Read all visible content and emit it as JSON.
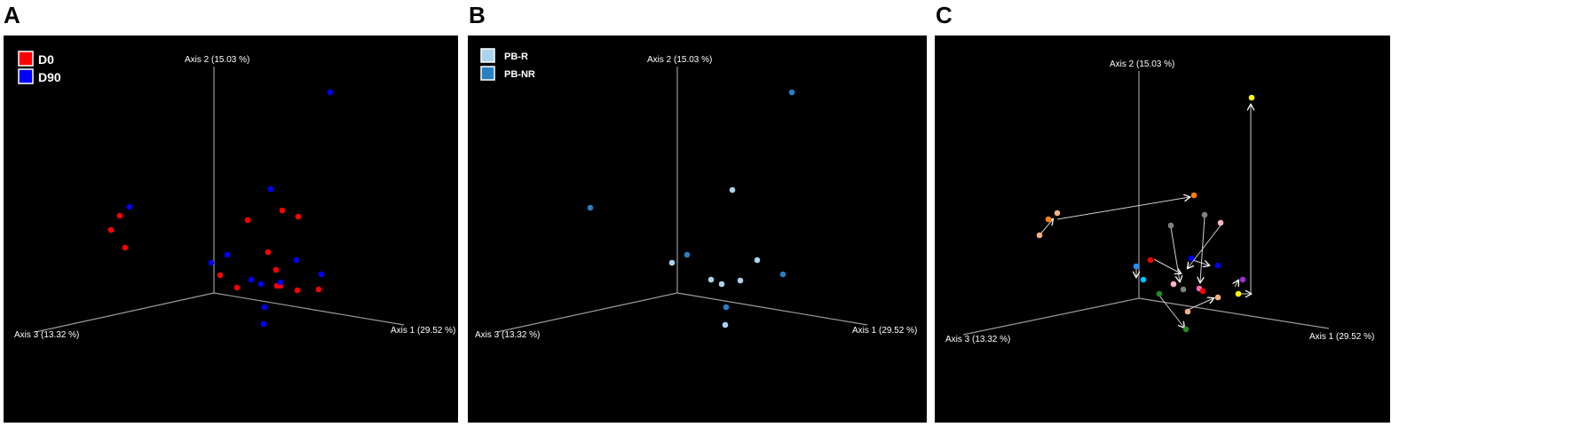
{
  "panels": [
    {
      "letter": "A"
    },
    {
      "letter": "B"
    },
    {
      "letter": "C"
    }
  ],
  "chart_data": [
    {
      "type": "scatter",
      "panel": "A",
      "axis_labels": {
        "axis1": "Axis 1 (29.52 %)",
        "axis2": "Axis 2 (15.03 %)",
        "axis3": "Axis 3 (13.32 %)"
      },
      "legend": [
        {
          "label": "D0",
          "color": "#ff0000"
        },
        {
          "label": "D90",
          "color": "#0000ff"
        }
      ],
      "series": [
        {
          "name": "D0",
          "color": "#ff0000",
          "points": [
            [
              135,
              243
            ],
            [
              141,
              279
            ],
            [
              125,
              259
            ],
            [
              279,
              248
            ],
            [
              318,
              237
            ],
            [
              336,
              244
            ],
            [
              302,
              284
            ],
            [
              311,
              304
            ],
            [
              248,
              310
            ],
            [
              267,
              324
            ],
            [
              312,
              322
            ],
            [
              316,
              322
            ],
            [
              335,
              327
            ],
            [
              359,
              326
            ]
          ]
        },
        {
          "name": "D90",
          "color": "#0000ff",
          "points": [
            [
              146,
              233
            ],
            [
              372,
              104
            ],
            [
              305,
              213
            ],
            [
              256,
              287
            ],
            [
              238,
              296
            ],
            [
              334,
              293
            ],
            [
              283,
              315
            ],
            [
              294,
              320
            ],
            [
              316,
              318
            ],
            [
              362,
              309
            ],
            [
              298,
              346
            ],
            [
              297,
              365
            ]
          ]
        }
      ]
    },
    {
      "type": "scatter",
      "panel": "B",
      "axis_labels": {
        "axis1": "Axis 1 (29.52 %)",
        "axis2": "Axis 2 (15.03 %)",
        "axis3": "Axis 3 (13.32 %)"
      },
      "legend": [
        {
          "label": "PB-R",
          "color": "#a9d3ee"
        },
        {
          "label": "PB-NR",
          "color": "#2a7fbf"
        }
      ],
      "series": [
        {
          "name": "PB-R",
          "color": "#a9d3ee",
          "points": [
            [
              825,
              214
            ],
            [
              757,
              296
            ],
            [
              853,
              293
            ],
            [
              801,
              315
            ],
            [
              813,
              320
            ],
            [
              834,
              316
            ],
            [
              817,
              366
            ]
          ]
        },
        {
          "name": "PB-NR",
          "color": "#2a7fbf",
          "points": [
            [
              892,
              104
            ],
            [
              665,
              234
            ],
            [
              774,
              287
            ],
            [
              882,
              309
            ],
            [
              818,
              346
            ]
          ]
        }
      ]
    },
    {
      "type": "scatter",
      "panel": "C",
      "axis_labels": {
        "axis1": "Axis 1 (29.52 %)",
        "axis2": "Axis 2 (15.03 %)",
        "axis3": "Axis 3 (13.32 %)"
      },
      "points": [
        [
          1191,
          240,
          "#f4b183"
        ],
        [
          1181,
          247,
          "#ff7f0e"
        ],
        [
          1171,
          265,
          "#f4b183"
        ],
        [
          1345,
          220,
          "#ff7f0e"
        ],
        [
          1410,
          110,
          "#ffff00"
        ],
        [
          1319,
          254,
          "#808080"
        ],
        [
          1357,
          242,
          "#808080"
        ],
        [
          1375,
          251,
          "#ffb6c1"
        ],
        [
          1280,
          300,
          "#1e90ff"
        ],
        [
          1288,
          315,
          "#00bfff"
        ],
        [
          1296,
          293,
          "#ff0000"
        ],
        [
          1342,
          291,
          "#0000ff"
        ],
        [
          1372,
          299,
          "#0000ff"
        ],
        [
          1400,
          315,
          "#9932cc"
        ],
        [
          1395,
          331,
          "#ffff00"
        ],
        [
          1372,
          335,
          "#f4b183"
        ],
        [
          1322,
          320,
          "#ffb6c1"
        ],
        [
          1333,
          326,
          "#808080"
        ],
        [
          1351,
          325,
          "#ff69b4"
        ],
        [
          1355,
          328,
          "#ff0000"
        ],
        [
          1306,
          331,
          "#228b22"
        ],
        [
          1336,
          371,
          "#228b22"
        ],
        [
          1338,
          351,
          "#f4b183"
        ]
      ],
      "arrows": [
        [
          1191,
          247,
          1340,
          222
        ],
        [
          1171,
          265,
          1186,
          247
        ],
        [
          1280,
          300,
          1280,
          312
        ],
        [
          1300,
          292,
          1330,
          308
        ],
        [
          1319,
          256,
          1329,
          317
        ],
        [
          1357,
          244,
          1352,
          318
        ],
        [
          1375,
          254,
          1338,
          302
        ],
        [
          1344,
          293,
          1362,
          299
        ],
        [
          1391,
          323,
          1395,
          316
        ],
        [
          1306,
          333,
          1334,
          369
        ],
        [
          1338,
          349,
          1367,
          336
        ],
        [
          1395,
          331,
          1409,
          331
        ],
        [
          1409,
          331,
          1409,
          118
        ]
      ]
    }
  ]
}
